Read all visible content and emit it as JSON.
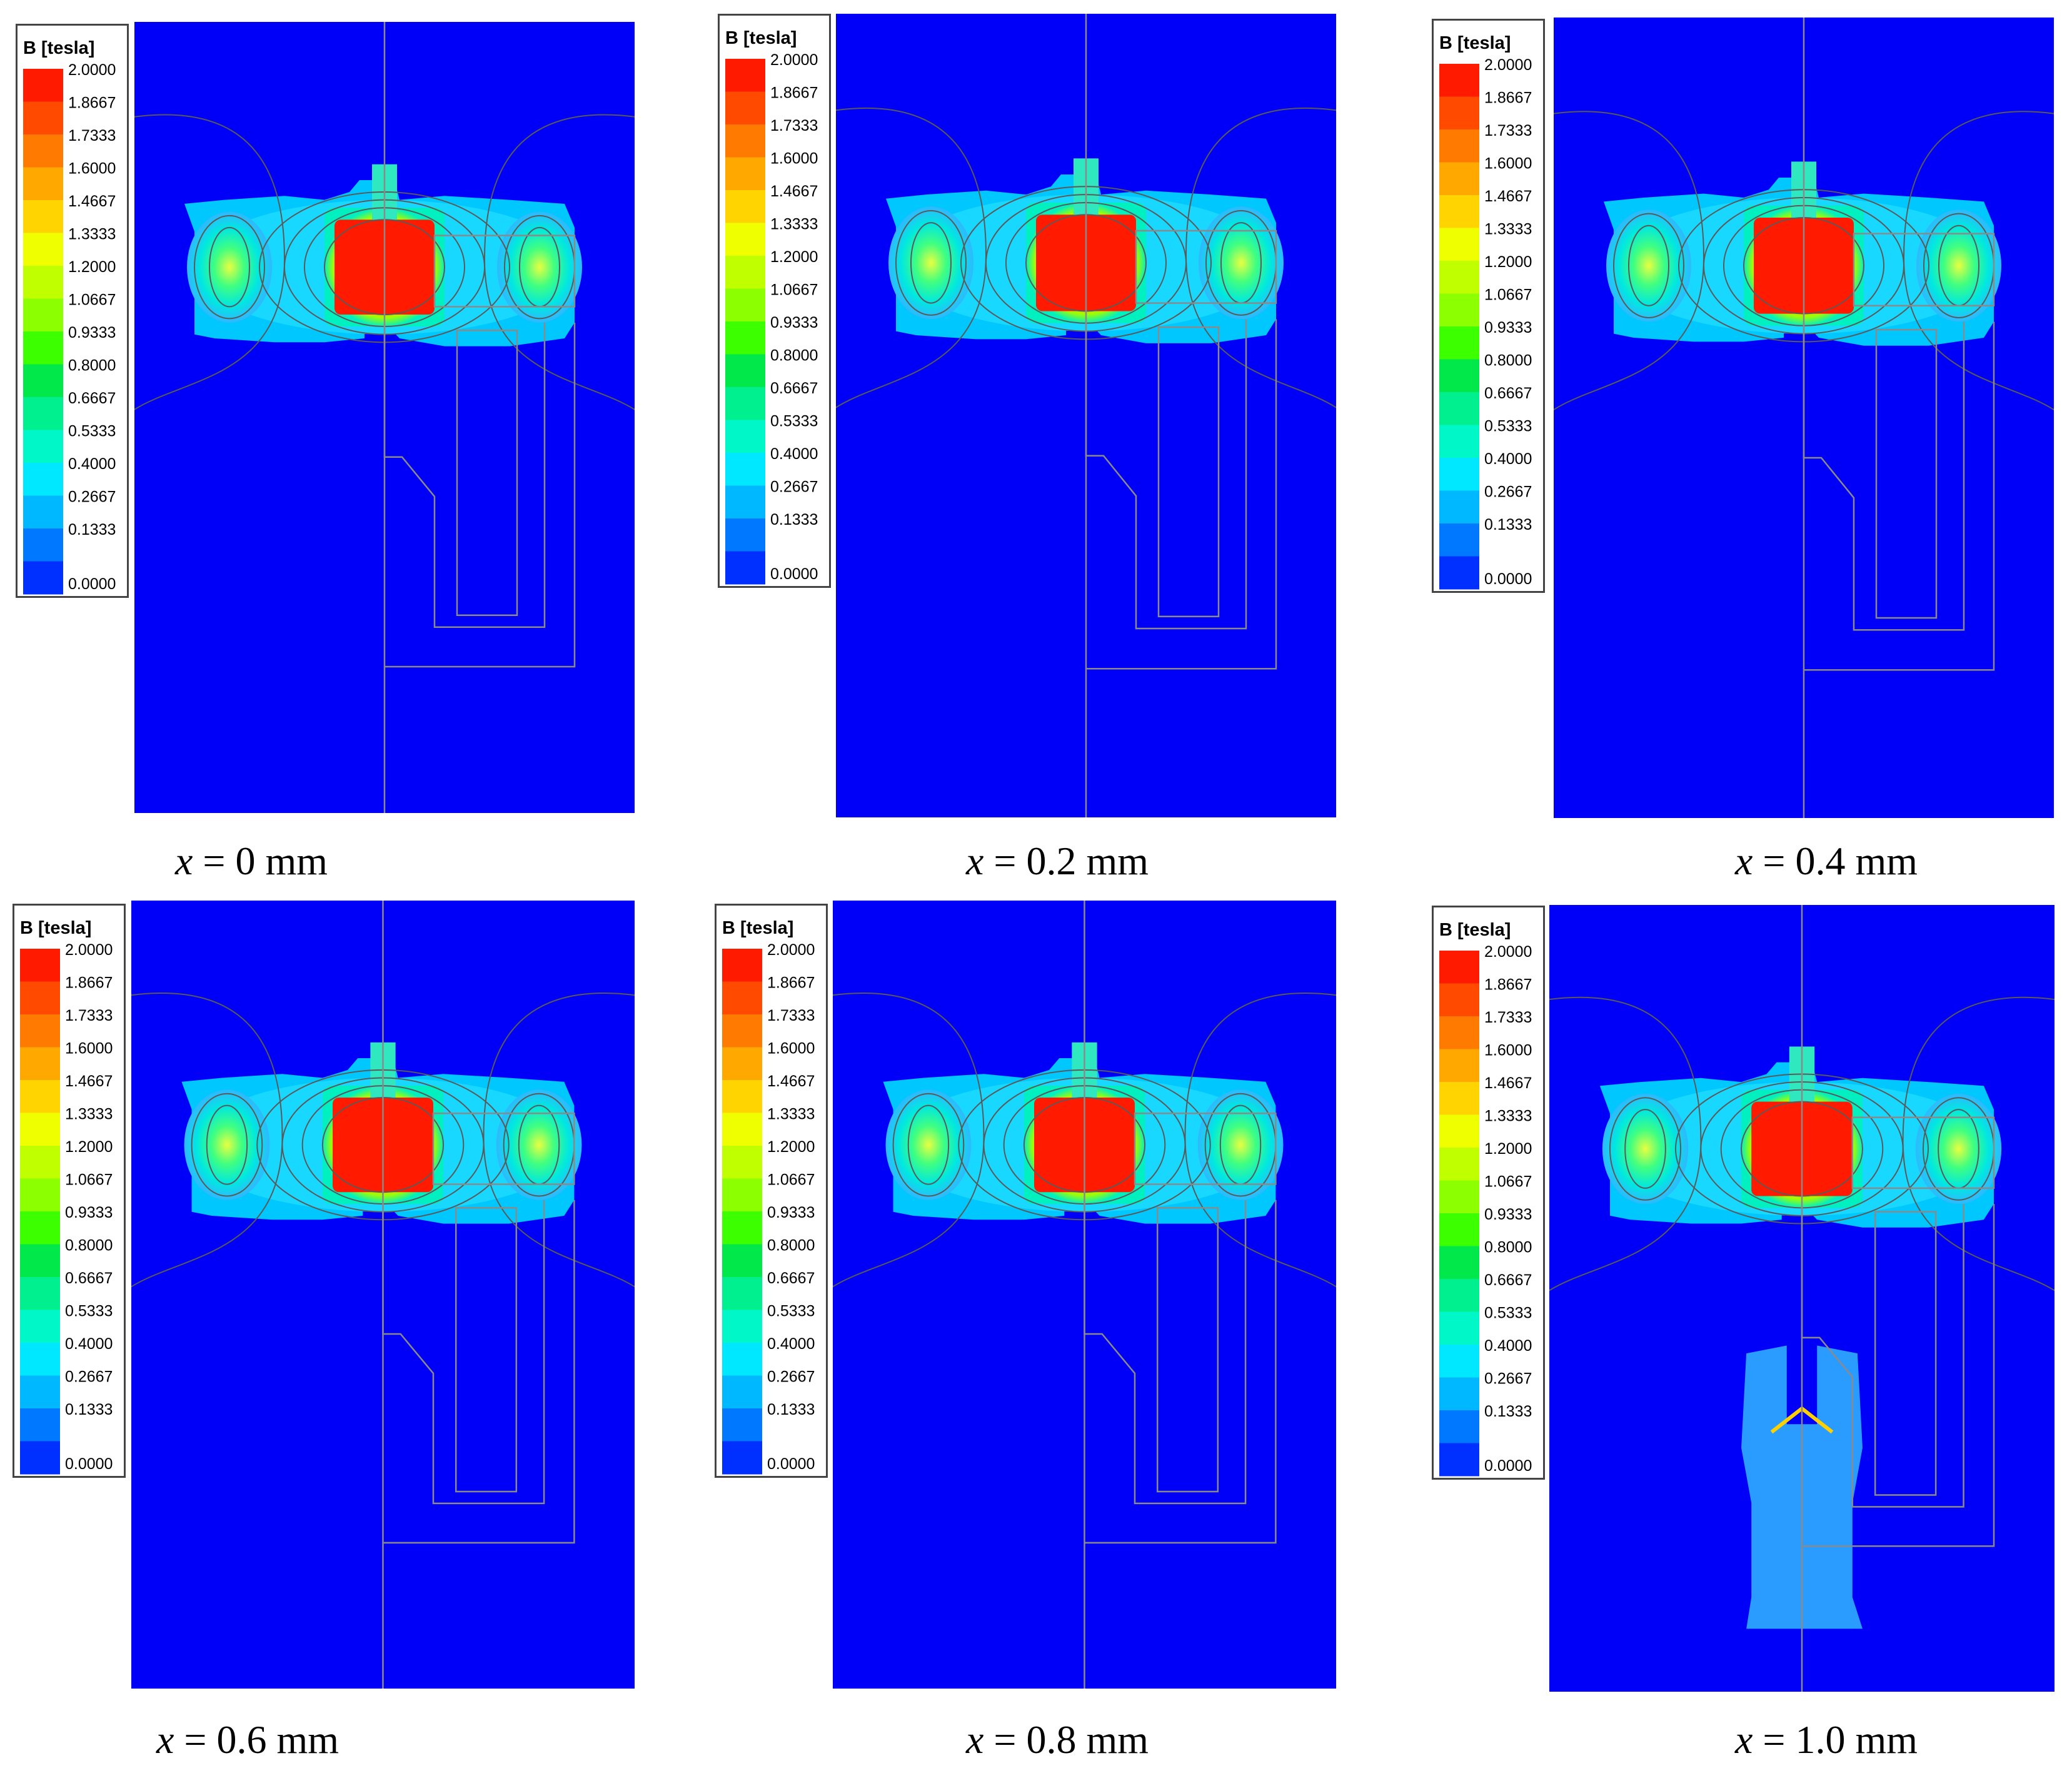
{
  "figure": {
    "legend_title": "B [tesla]",
    "scale_labels": [
      "2.0000",
      "1.8667",
      "1.7333",
      "1.6000",
      "1.4667",
      "1.3333",
      "1.2000",
      "1.0667",
      "0.9333",
      "0.8000",
      "0.6667",
      "0.5333",
      "0.4000",
      "0.2667",
      "0.1333",
      "0.0000"
    ],
    "scale_colors": [
      "#ff1a00",
      "#ff4a00",
      "#ff7a00",
      "#ffa800",
      "#ffd400",
      "#f0ff00",
      "#bfff00",
      "#8cff00",
      "#3cff00",
      "#00e84a",
      "#00f090",
      "#00f8c8",
      "#00e8ff",
      "#00b8ff",
      "#0078ff",
      "#0030ff"
    ],
    "field_background_color": "#0000f8",
    "panels": [
      {
        "caption_var": "x",
        "caption_rest": " = 0 mm",
        "displacement_mm": 0.0
      },
      {
        "caption_var": "x",
        "caption_rest": " = 0.2 mm",
        "displacement_mm": 0.2
      },
      {
        "caption_var": "x",
        "caption_rest": " = 0.4 mm",
        "displacement_mm": 0.4
      },
      {
        "caption_var": "x",
        "caption_rest": " = 0.6 mm",
        "displacement_mm": 0.6
      },
      {
        "caption_var": "x",
        "caption_rest": " = 0.8 mm",
        "displacement_mm": 0.8
      },
      {
        "caption_var": "x",
        "caption_rest": " = 1.0 mm",
        "displacement_mm": 1.0
      }
    ]
  }
}
